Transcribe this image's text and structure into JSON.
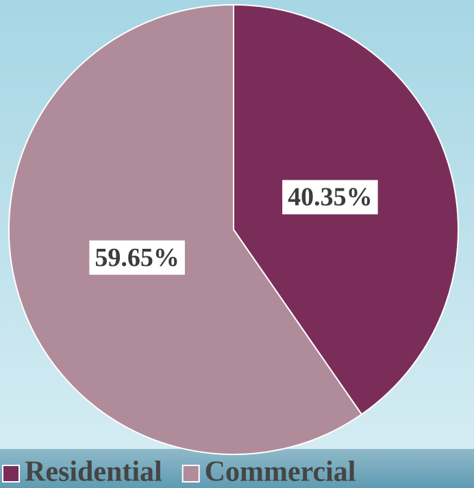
{
  "chart_data": {
    "type": "pie",
    "categories": [
      "Residential",
      "Commercial"
    ],
    "values": [
      40.35,
      59.65
    ],
    "value_labels": [
      "40.35%",
      "59.65%"
    ],
    "colors": [
      "#7b2d5a",
      "#b08c9b"
    ],
    "legend": "bottom"
  }
}
